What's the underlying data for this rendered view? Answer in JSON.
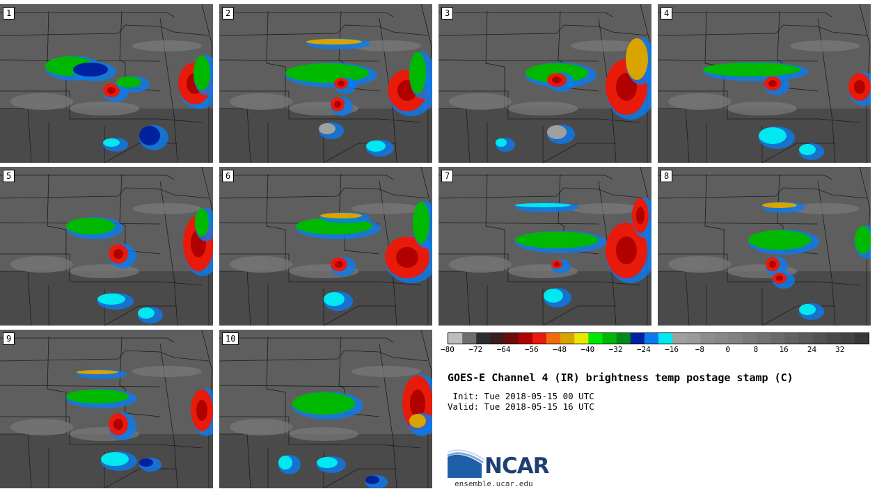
{
  "panels": [
    {
      "label": "1"
    },
    {
      "label": "2"
    },
    {
      "label": "3"
    },
    {
      "label": "4"
    },
    {
      "label": "5"
    },
    {
      "label": "6"
    },
    {
      "label": "7"
    },
    {
      "label": "8"
    },
    {
      "label": "9"
    },
    {
      "label": "10"
    }
  ],
  "colorbar": {
    "colors": [
      "#bdbdbd",
      "#6e6e6e",
      "#2e2e2e",
      "#3c1c1c",
      "#6e0a0a",
      "#b00000",
      "#e81a0a",
      "#f06a0a",
      "#d9a300",
      "#e8e800",
      "#00e800",
      "#00b800",
      "#008a1a",
      "#0022a0",
      "#0a7af0",
      "#00e8f0",
      "#a0a0a0",
      "#9a9a9a",
      "#8e8e8e",
      "#888888",
      "#828282",
      "#7a7a7a",
      "#727272",
      "#6a6a6a",
      "#626262",
      "#5a5a5a",
      "#525252",
      "#4a4a4a",
      "#424242",
      "#383838"
    ],
    "ticks": [
      "−80",
      "−72",
      "−64",
      "−56",
      "−48",
      "−40",
      "−32",
      "−24",
      "−16",
      "−8",
      "0",
      "8",
      "16",
      "24",
      "32"
    ]
  },
  "title": "GOES-E Channel 4 (IR) brightness temp postage stamp (C)",
  "init_line": " Init: Tue 2018-05-15 00 UTC",
  "valid_line": "Valid: Tue 2018-05-15 16 UTC",
  "logo": {
    "text": "NCAR",
    "url": "ensemble.ucar.edu"
  }
}
